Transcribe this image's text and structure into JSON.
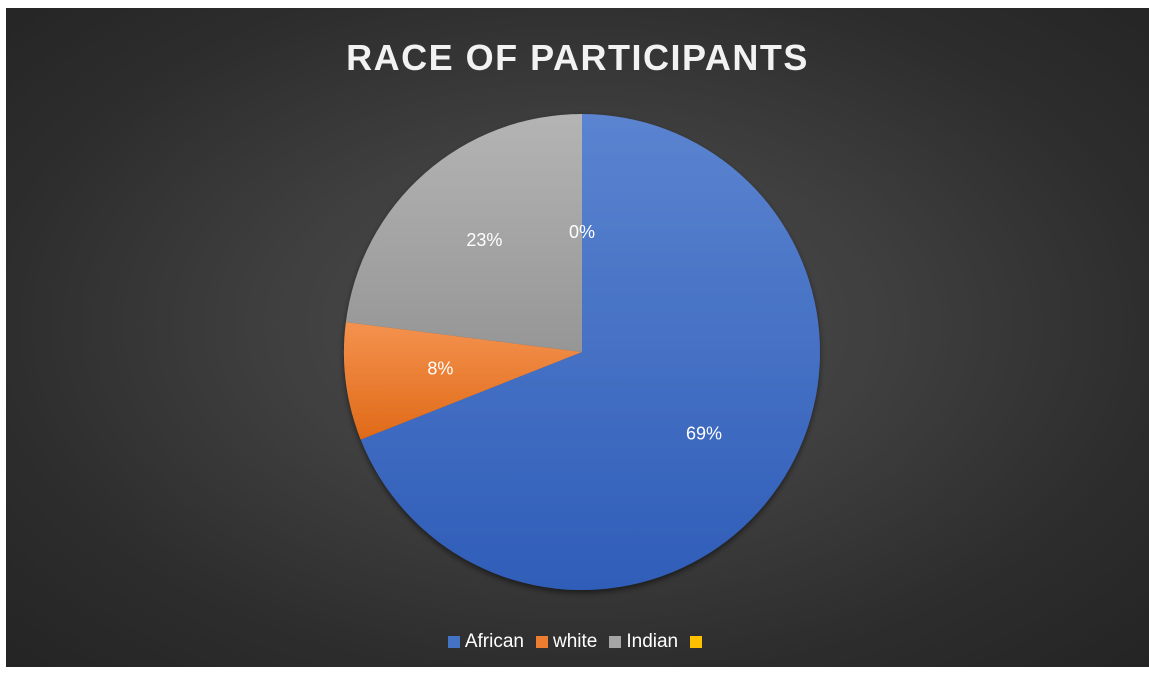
{
  "chart_data": {
    "type": "pie",
    "title": "RACE OF PARTICIPANTS",
    "categories": [
      "African",
      "white",
      "Indian",
      ""
    ],
    "values": [
      69,
      8,
      23,
      0
    ],
    "data_labels": [
      "69%",
      "8%",
      "23%",
      "0%"
    ],
    "colors": [
      "#4472c4",
      "#ed7d31",
      "#a5a5a5",
      "#ffc000"
    ],
    "legend_position": "bottom"
  }
}
